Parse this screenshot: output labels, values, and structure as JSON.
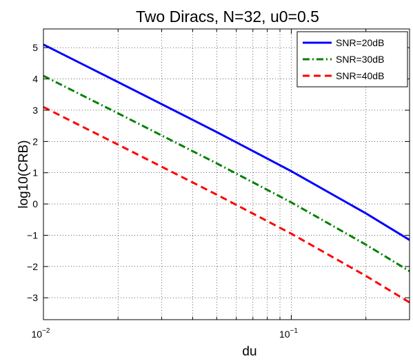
{
  "chart_data": {
    "type": "line",
    "title": "Two Diracs, N=32, u0=0.5",
    "xlabel": "du",
    "ylabel": "log10(CRB)",
    "x_scale": "log",
    "xlim": [
      0.01,
      0.3
    ],
    "ylim": [
      -3.7,
      5.6
    ],
    "grid": true,
    "legend_position": "top-right",
    "x_major_tick_labels": [
      {
        "value": 0.01,
        "base": "10",
        "exponent": "−2"
      },
      {
        "value": 0.1,
        "base": "10",
        "exponent": "−1"
      }
    ],
    "y_ticks": [
      -3,
      -2,
      -1,
      0,
      1,
      2,
      3,
      4,
      5
    ],
    "y_tick_labels": [
      "−3",
      "−2",
      "−1",
      "0",
      "1",
      "2",
      "3",
      "4",
      "5"
    ],
    "series": [
      {
        "name": "SNR=20dB",
        "color": "#0000ff",
        "style": "solid",
        "x": [
          0.01,
          0.02,
          0.05,
          0.1,
          0.2,
          0.3
        ],
        "y": [
          5.1,
          3.9,
          2.3,
          1.05,
          -0.3,
          -1.15
        ]
      },
      {
        "name": "SNR=30dB",
        "color": "#008000",
        "style": "dashdot",
        "x": [
          0.01,
          0.02,
          0.05,
          0.1,
          0.2,
          0.3
        ],
        "y": [
          4.1,
          2.9,
          1.3,
          0.05,
          -1.3,
          -2.15
        ]
      },
      {
        "name": "SNR=40dB",
        "color": "#ff0000",
        "style": "dashed",
        "x": [
          0.01,
          0.02,
          0.05,
          0.1,
          0.2,
          0.3
        ],
        "y": [
          3.1,
          1.9,
          0.3,
          -0.95,
          -2.3,
          -3.15
        ]
      }
    ]
  }
}
